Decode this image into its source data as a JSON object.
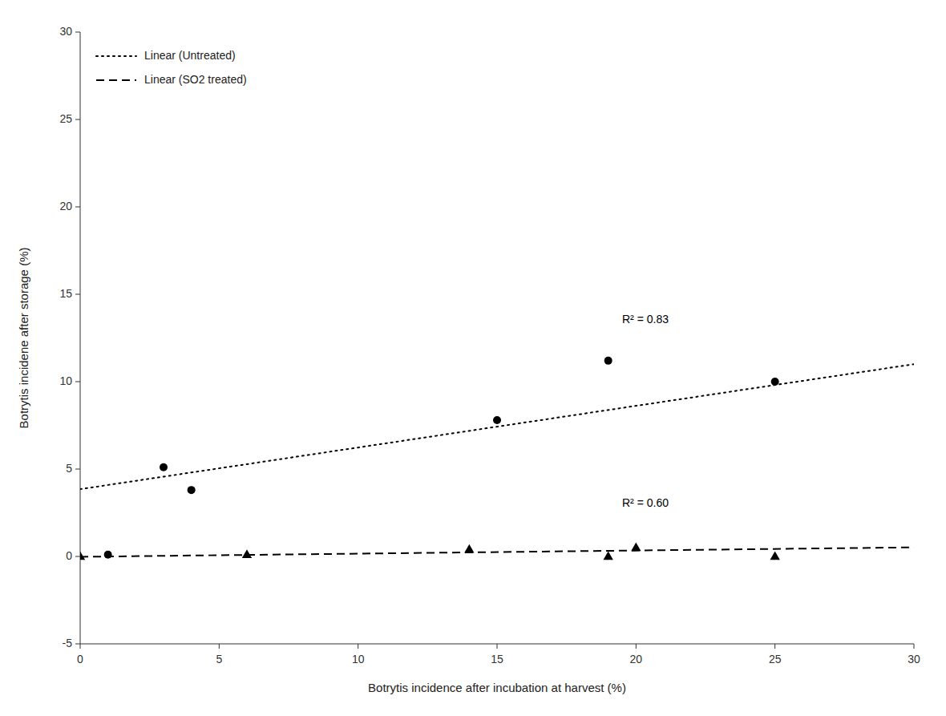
{
  "chart_data": {
    "type": "scatter",
    "xlabel": "Botrytis incidence after incubation at harvest (%)",
    "ylabel": "Botrytis incidene after storage (%)",
    "xlim": [
      0,
      30
    ],
    "ylim": [
      -5,
      30
    ],
    "xticks": [
      0,
      5,
      10,
      15,
      20,
      25,
      30
    ],
    "yticks": [
      -5,
      0,
      5,
      10,
      15,
      20,
      25,
      30
    ],
    "grid": false,
    "legend": "upper left",
    "series": [
      {
        "type": "scatter",
        "marker": "circle",
        "color": "#000000",
        "x": [
          1,
          3,
          4,
          15,
          19,
          25
        ],
        "values": [
          0.1,
          5.1,
          3.8,
          7.8,
          11.2,
          10.0
        ]
      },
      {
        "type": "scatter",
        "marker": "triangle",
        "color": "#000000",
        "x": [
          0,
          6,
          14,
          19,
          20,
          25
        ],
        "values": [
          0.0,
          0.1,
          0.4,
          0.0,
          0.5,
          0.0
        ]
      },
      {
        "type": "line",
        "name": "Linear (Untreated)",
        "line_style": "dotted",
        "color": "#000000",
        "x": [
          0,
          30
        ],
        "values": [
          3.85,
          11.0
        ]
      },
      {
        "type": "line",
        "name": "Linear (SO2 treated)",
        "line_style": "dashed",
        "color": "#000000",
        "x": [
          0,
          30
        ],
        "values": [
          -0.02,
          0.52
        ]
      }
    ],
    "annotations": [
      {
        "text": "R² = 0.83",
        "x": 19.5,
        "y": 13.5,
        "color": "#000000"
      },
      {
        "text": "R² = 0.60",
        "x": 19.5,
        "y": 3.0,
        "color": "#000000"
      }
    ]
  }
}
